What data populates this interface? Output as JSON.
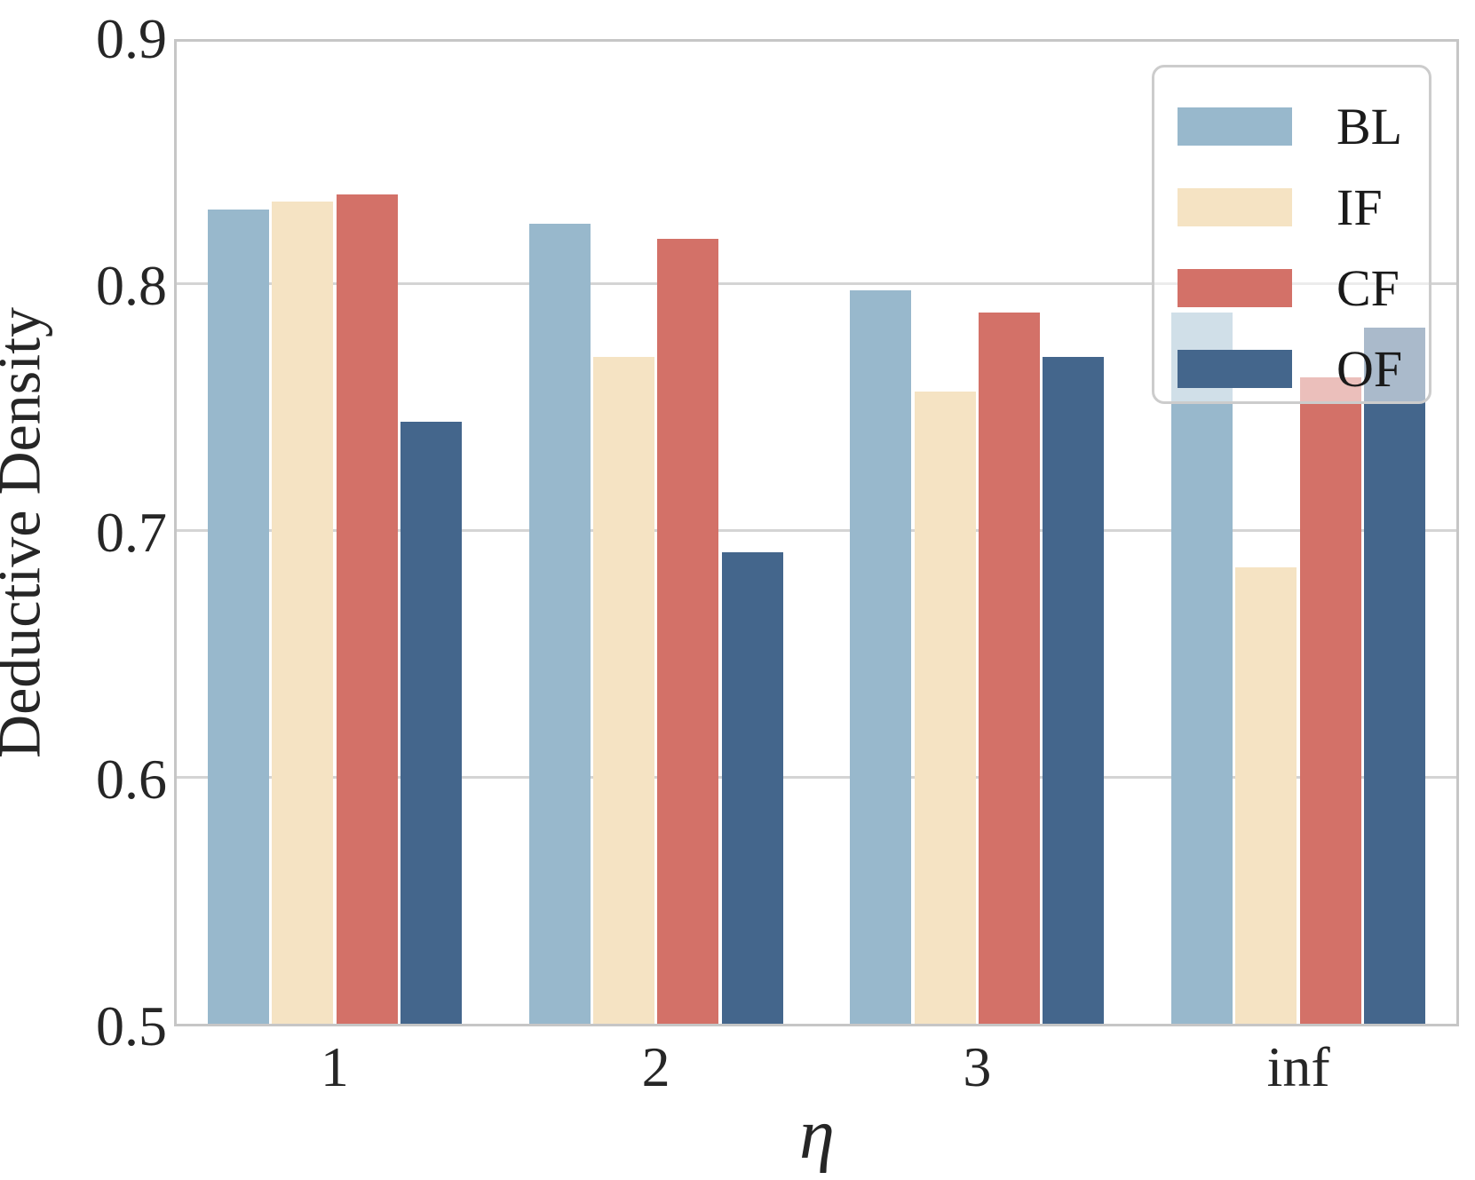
{
  "chart_data": {
    "type": "bar",
    "title": "",
    "xlabel": "η",
    "ylabel": "Deductive Density",
    "categories": [
      "1",
      "2",
      "3",
      "inf"
    ],
    "series": [
      {
        "name": "BL",
        "color": "#98b8cc",
        "values": [
          0.83,
          0.824,
          0.797,
          0.788
        ]
      },
      {
        "name": "IF",
        "color": "#f5e3c3",
        "values": [
          0.833,
          0.77,
          0.756,
          0.685
        ]
      },
      {
        "name": "CF",
        "color": "#d37168",
        "values": [
          0.836,
          0.818,
          0.788,
          0.762
        ]
      },
      {
        "name": "OF",
        "color": "#44668c",
        "values": [
          0.744,
          0.691,
          0.77,
          0.782
        ]
      }
    ],
    "ylim": [
      0.5,
      0.9
    ],
    "yticks": [
      "0.5",
      "0.6",
      "0.7",
      "0.8",
      "0.9"
    ],
    "grid": true,
    "grid_axis": "y",
    "legend_position": "upper right",
    "colors": {
      "spine": "#c6c6c6",
      "gridline": "#d4d4d4",
      "text": "#262626",
      "legend_border": "#cccccc"
    }
  }
}
